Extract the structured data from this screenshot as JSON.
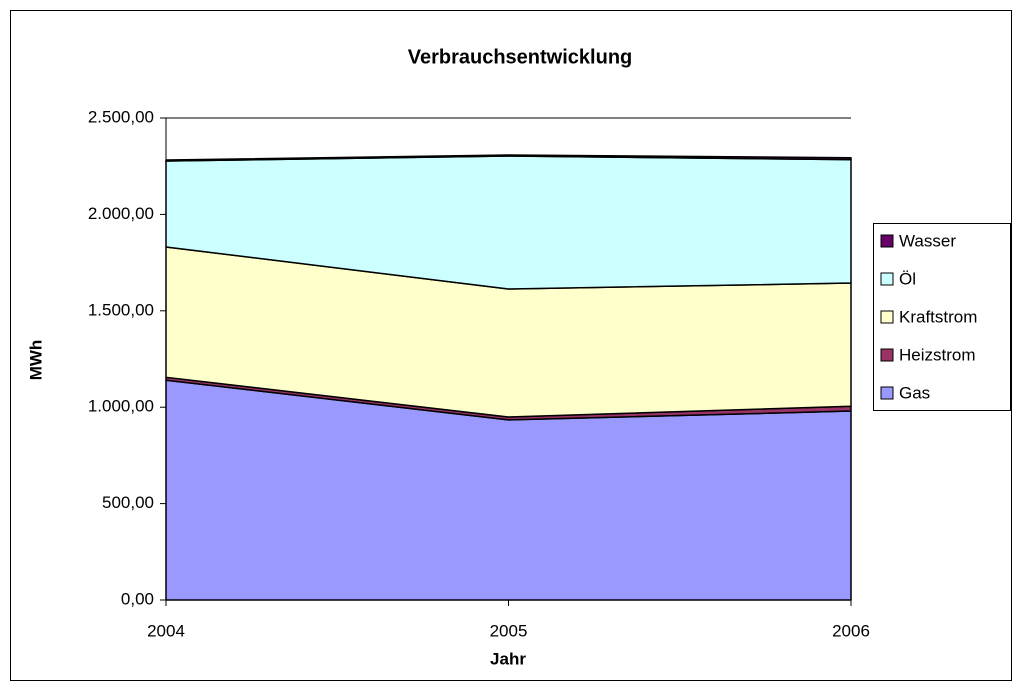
{
  "chart_data": {
    "type": "stacked_area",
    "title": "Verbrauchsentwicklung",
    "x_label": "Jahr",
    "y_label": "MWh",
    "categories": [
      "2004",
      "2005",
      "2006"
    ],
    "series": [
      {
        "name": "Gas",
        "color": "#9999ff",
        "values": [
          1140,
          934,
          980
        ]
      },
      {
        "name": "Heizstrom",
        "color": "#993366",
        "values": [
          15,
          15,
          25
        ]
      },
      {
        "name": "Kraftstrom",
        "color": "#ffffcc",
        "values": [
          676,
          664,
          639
        ]
      },
      {
        "name": "Öl",
        "color": "#ccffff",
        "values": [
          446,
          690,
          640
        ]
      },
      {
        "name": "Wasser",
        "color": "#660066",
        "values": [
          5,
          5,
          10
        ]
      }
    ],
    "ylim": [
      0,
      2500
    ],
    "yticks": [
      {
        "value": 0,
        "label": "0,00"
      },
      {
        "value": 500,
        "label": "500,00"
      },
      {
        "value": 1000,
        "label": "1.000,00"
      },
      {
        "value": 1500,
        "label": "1.500,00"
      },
      {
        "value": 2000,
        "label": "2.000,00"
      },
      {
        "value": 2500,
        "label": "2.500,00"
      }
    ],
    "grid": false,
    "legend": "right"
  }
}
